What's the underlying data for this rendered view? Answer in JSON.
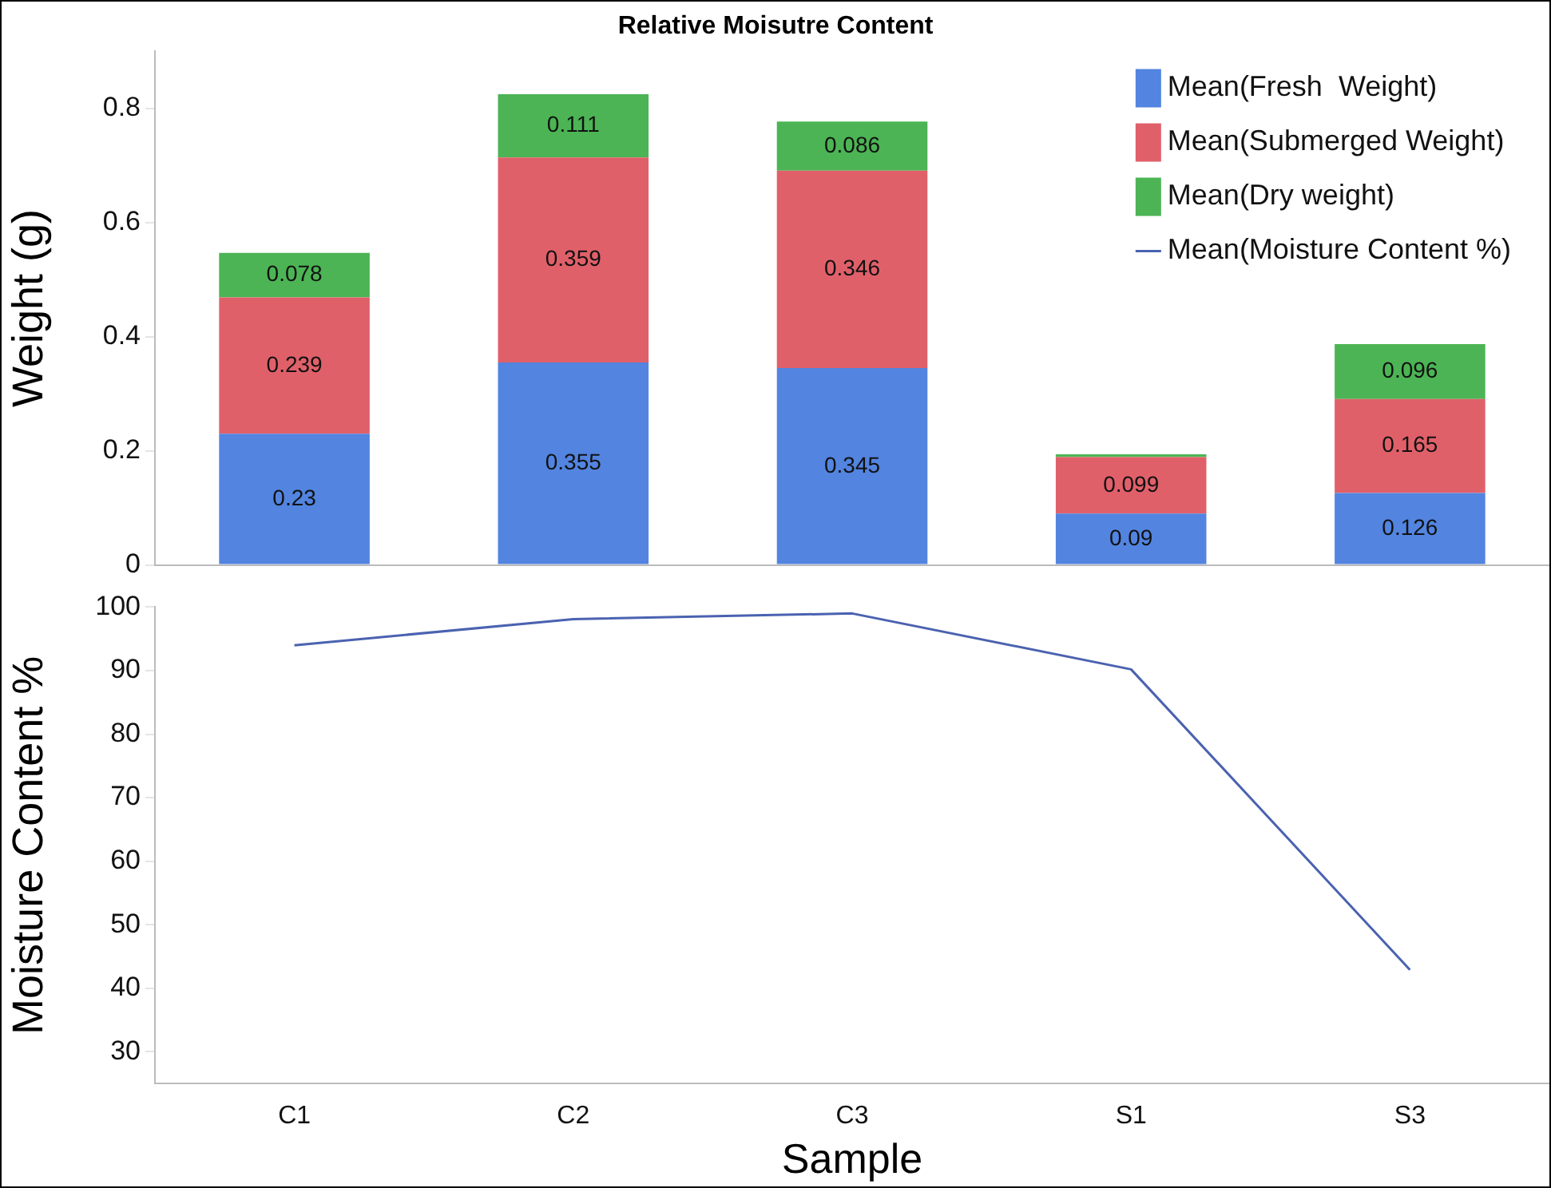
{
  "chart_data": [
    {
      "type": "bar",
      "title": "Relative Moisutre Content",
      "ylabel": "Weight (g)",
      "categories": [
        null,
        null,
        null,
        null,
        null
      ],
      "stacked": true,
      "ylim": [
        0,
        0.9
      ],
      "yticks": [
        0,
        0.2,
        0.4,
        0.6,
        0.8
      ],
      "tick_labels": "y",
      "grid": false,
      "legend": "top right",
      "series": [
        {
          "name": "Mean(Fresh  Weight)",
          "color": "#5284e0",
          "values": [
            0.23,
            0.355,
            0.345,
            0.09,
            0.126
          ],
          "value_labels": [
            "0.23",
            "0.355",
            "0.345",
            "0.09",
            "0.126"
          ]
        },
        {
          "name": "Mean(Submerged Weight)",
          "color": "#e0606a",
          "values": [
            0.239,
            0.359,
            0.346,
            0.099,
            0.165
          ],
          "value_labels": [
            "0.239",
            "0.359",
            "0.346",
            "0.099",
            "0.165"
          ]
        },
        {
          "name": "Mean(Dry weight)",
          "color": "#4cb454",
          "values": [
            0.078,
            0.111,
            0.086,
            0.005,
            0.096
          ],
          "value_labels": [
            "0.078",
            "0.111",
            "0.086",
            null,
            "0.096"
          ]
        }
      ]
    },
    {
      "type": "line",
      "ylabel": "Moisture Content %",
      "xlabel": "Sample",
      "categories": [
        "C1",
        "C2",
        "C3",
        "S1",
        "S3"
      ],
      "ylim": [
        25,
        100
      ],
      "yticks": [
        30,
        40,
        50,
        60,
        70,
        80,
        90,
        100
      ],
      "grid": false,
      "marker": "none",
      "series": [
        {
          "name": "Mean(Moisture Content %)",
          "color": "#4a62b0",
          "values": [
            94.0,
            98.1,
            99.0,
            90.2,
            42.9
          ]
        }
      ]
    }
  ]
}
